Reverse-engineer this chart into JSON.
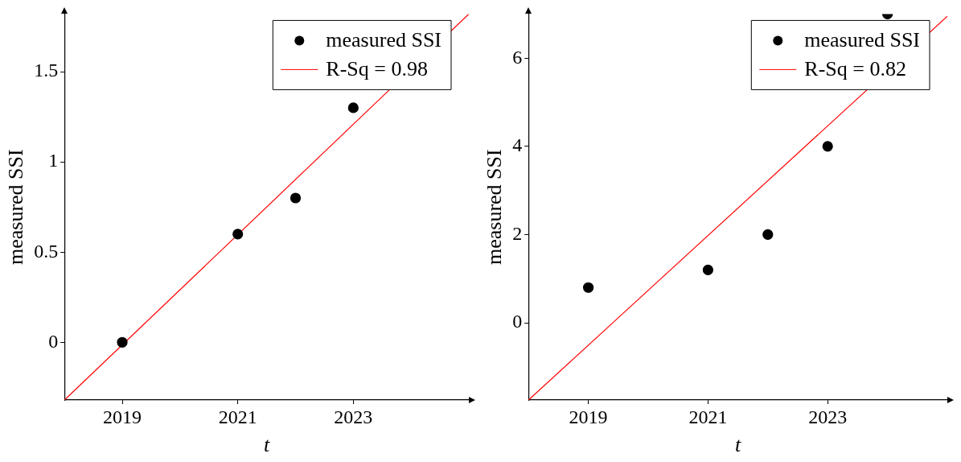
{
  "chart_data": [
    {
      "type": "scatter",
      "xlabel": "t",
      "ylabel": "measured SSI",
      "xlim": [
        2018,
        2025
      ],
      "xticks": [
        2019,
        2021,
        2023
      ],
      "ylim": [
        -0.32,
        1.82
      ],
      "yticks": [
        0,
        0.5,
        1,
        1.5
      ],
      "grid": false,
      "legend": "top right",
      "series": [
        {
          "name": "measured SSI",
          "color": "#000000",
          "marker": "circle",
          "x": [
            2019,
            2021,
            2022,
            2023
          ],
          "values": [
            0,
            0.6,
            0.8,
            1.3
          ]
        },
        {
          "name": "R-Sq = 0.98",
          "type": "line",
          "color": "#ff0000",
          "marker": "none",
          "x": [
            2018,
            2025
          ],
          "values": [
            -0.32,
            1.82
          ]
        }
      ]
    },
    {
      "type": "scatter",
      "xlabel": "t",
      "ylabel": "measured SSI",
      "xlim": [
        2018,
        2025
      ],
      "xticks": [
        2019,
        2021,
        2023
      ],
      "ylim": [
        -1.75,
        7
      ],
      "yticks": [
        0,
        2,
        4,
        6
      ],
      "grid": false,
      "legend": "top right",
      "series": [
        {
          "name": "measured SSI",
          "color": "#000000",
          "marker": "circle",
          "x": [
            2019,
            2021,
            2022,
            2023,
            2024
          ],
          "values": [
            0.8,
            1.2,
            2,
            4,
            7
          ]
        },
        {
          "name": "R-Sq = 0.82",
          "type": "line",
          "color": "#ff0000",
          "marker": "none",
          "x": [
            2018,
            2025
          ],
          "values": [
            -1.75,
            6.95
          ]
        }
      ]
    }
  ]
}
